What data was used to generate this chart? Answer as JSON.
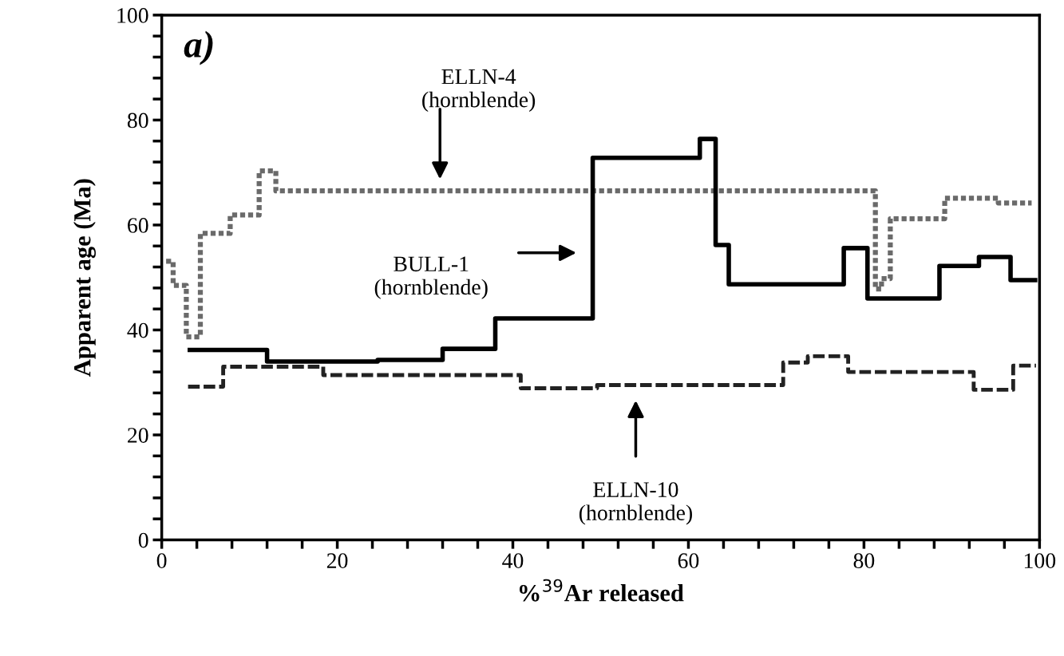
{
  "chart_data": {
    "type": "step",
    "xlabel": "%$^{39}$Ar released",
    "ylabel": "Apparent age (Ma)",
    "xlim": [
      0,
      100
    ],
    "ylim": [
      0,
      100
    ],
    "xticks": [
      0,
      {
        "value": 4,
        "label": null
      },
      {
        "value": 8,
        "label": null
      },
      {
        "value": 12,
        "label": null
      },
      {
        "value": 16,
        "label": null
      },
      20,
      {
        "value": 24,
        "label": null
      },
      {
        "value": 28,
        "label": null
      },
      {
        "value": 32,
        "label": null
      },
      {
        "value": 36,
        "label": null
      },
      40,
      {
        "value": 44,
        "label": null
      },
      {
        "value": 48,
        "label": null
      },
      {
        "value": 52,
        "label": null
      },
      {
        "value": 56,
        "label": null
      },
      60,
      {
        "value": 64,
        "label": null
      },
      {
        "value": 68,
        "label": null
      },
      {
        "value": 72,
        "label": null
      },
      {
        "value": 76,
        "label": null
      },
      80,
      {
        "value": 84,
        "label": null
      },
      {
        "value": 88,
        "label": null
      },
      {
        "value": 92,
        "label": null
      },
      {
        "value": 96,
        "label": null
      },
      100
    ],
    "yticks": [
      0,
      {
        "value": 4,
        "label": null
      },
      {
        "value": 8,
        "label": null
      },
      {
        "value": 12,
        "label": null
      },
      {
        "value": 16,
        "label": null
      },
      20,
      {
        "value": 24,
        "label": null
      },
      {
        "value": 28,
        "label": null
      },
      {
        "value": 32,
        "label": null
      },
      {
        "value": 36,
        "label": null
      },
      40,
      {
        "value": 44,
        "label": null
      },
      {
        "value": 48,
        "label": null
      },
      {
        "value": 52,
        "label": null
      },
      {
        "value": 56,
        "label": null
      },
      60,
      {
        "value": 64,
        "label": null
      },
      {
        "value": 68,
        "label": null
      },
      {
        "value": 72,
        "label": null
      },
      {
        "value": 76,
        "label": null
      },
      80,
      {
        "value": 84,
        "label": null
      },
      {
        "value": 88,
        "label": null
      },
      {
        "value": 92,
        "label": null
      },
      {
        "value": 96,
        "label": null
      },
      100
    ],
    "grid": false,
    "legend": false,
    "series": [
      {
        "color": "#6a6a6a",
        "line_style": "dotted",
        "x": [
          0.5,
          1.3,
          2.8,
          4.4,
          7.8,
          11.1,
          13.0,
          81.3,
          82.0,
          83.0,
          89.2,
          95.3,
          99.1
        ],
        "values": [
          53.1,
          48.5,
          38.7,
          58.4,
          61.9,
          70.3,
          66.5,
          47.8,
          49.8,
          61.2,
          65.1,
          64.2,
          64.2
        ]
      },
      {
        "color": "#000000",
        "line_style": "solid",
        "x": [
          3.2,
          12.0,
          24.6,
          32.0,
          38.0,
          49.1,
          61.3,
          63.1,
          64.6,
          77.7,
          80.4,
          88.6,
          93.1,
          96.7,
          99.5
        ],
        "values": [
          36.2,
          34.0,
          34.3,
          36.4,
          42.2,
          72.8,
          76.4,
          56.2,
          48.7,
          55.6,
          46.0,
          52.2,
          53.9,
          49.5,
          49.5
        ]
      },
      {
        "color": "#222222",
        "line_style": "dashed",
        "x": [
          3.0,
          7.0,
          18.4,
          40.9,
          49.6,
          70.8,
          73.6,
          78.2,
          92.5,
          97.0,
          99.6
        ],
        "values": [
          29.2,
          33.0,
          31.4,
          28.9,
          29.5,
          33.8,
          35.0,
          32.0,
          28.6,
          33.2,
          33.2
        ]
      }
    ],
    "annotations": [
      "a)",
      "ELLN-4\n(hornblende)",
      "BULL-1\n(hornblende)",
      "ELLN-10\n(hornblende)"
    ]
  }
}
